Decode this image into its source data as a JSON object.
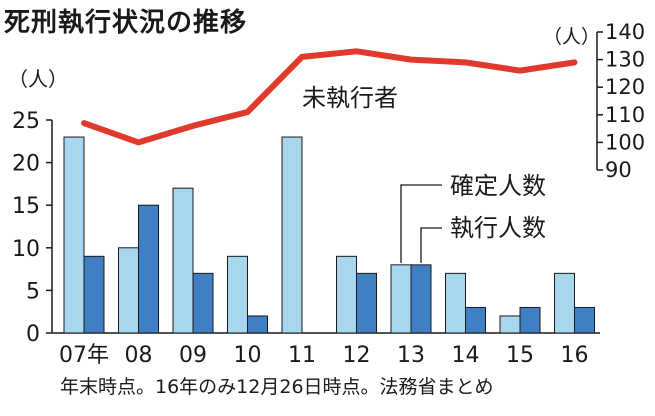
{
  "title": "死刑執行状況の推移",
  "footnote": "年末時点。16年のみ12月26日時点。法務省まとめ",
  "chart_data": {
    "type": "bar",
    "categories": [
      "07年",
      "08",
      "09",
      "10",
      "11",
      "12",
      "13",
      "14",
      "15",
      "16"
    ],
    "series": [
      {
        "name": "確定人数",
        "values": [
          23,
          10,
          17,
          9,
          23,
          9,
          8,
          7,
          2,
          7
        ],
        "color": "#a9d6ef"
      },
      {
        "name": "執行人数",
        "values": [
          9,
          15,
          7,
          2,
          0,
          7,
          8,
          3,
          3,
          3
        ],
        "color": "#3f7fc4"
      }
    ],
    "line_series": {
      "name": "未執行者",
      "values": [
        107,
        100,
        106,
        111,
        131,
        133,
        130,
        129,
        126,
        129
      ],
      "color": "#e03a2c",
      "axis": "right"
    },
    "y_left": {
      "label": "（人）",
      "ylim": [
        0,
        25
      ],
      "ticks": [
        "0",
        "5",
        "10",
        "15",
        "20",
        "25"
      ]
    },
    "y_right": {
      "label": "（人）",
      "ylim": [
        90,
        140
      ],
      "ticks": [
        "90",
        "100",
        "110",
        "120",
        "130",
        "140"
      ]
    },
    "grid": false,
    "legend": "right"
  }
}
